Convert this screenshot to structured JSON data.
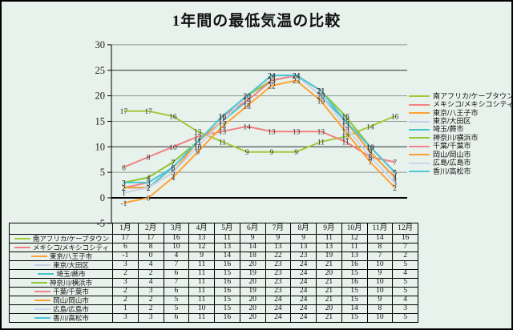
{
  "page": {
    "background": "#E7F2EC"
  },
  "chart_data": {
    "type": "line",
    "title": "1年間の最低気温の比較",
    "categories": [
      "1月",
      "2月",
      "3月",
      "4月",
      "5月",
      "6月",
      "7月",
      "8月",
      "9月",
      "10月",
      "11月",
      "12月"
    ],
    "series": [
      {
        "name": "南アフリカ/ケープタウン",
        "color": "#A3C93C",
        "values": [
          17,
          17,
          16,
          13,
          11,
          9,
          9,
          9,
          11,
          12,
          14,
          16
        ]
      },
      {
        "name": "メキシコ/メキシコシティ",
        "color": "#F28080",
        "values": [
          6,
          8,
          10,
          12,
          13,
          14,
          13,
          13,
          13,
          11,
          8,
          7
        ]
      },
      {
        "name": "東京/八王子市",
        "color": "#FFA233",
        "values": [
          -1,
          0,
          4,
          9,
          14,
          18,
          22,
          23,
          19,
          13,
          7,
          2
        ]
      },
      {
        "name": "東京/大田区",
        "color": "#C6CDE6",
        "values": [
          3,
          4,
          7,
          11,
          16,
          20,
          23,
          24,
          21,
          16,
          10,
          5
        ]
      },
      {
        "name": "埼玉/蕨市",
        "color": "#45C4CC",
        "values": [
          2,
          2,
          6,
          11,
          15,
          19,
          23,
          24,
          20,
          15,
          9,
          4
        ]
      },
      {
        "name": "神奈川/横浜市",
        "color": "#8FC832",
        "values": [
          3,
          4,
          7,
          11,
          16,
          20,
          23,
          24,
          21,
          16,
          10,
          5
        ]
      },
      {
        "name": "千葉/千葉市",
        "color": "#F2838E",
        "values": [
          2,
          3,
          6,
          11,
          16,
          19,
          23,
          24,
          21,
          15,
          10,
          5
        ]
      },
      {
        "name": "岡山/岡山市",
        "color": "#F9A037",
        "values": [
          2,
          2,
          5,
          11,
          15,
          20,
          24,
          24,
          21,
          15,
          9,
          4
        ]
      },
      {
        "name": "広島/広島市",
        "color": "#CFD3EC",
        "values": [
          1,
          2,
          5,
          10,
          15,
          20,
          24,
          24,
          20,
          14,
          8,
          3
        ]
      },
      {
        "name": "香川/高松市",
        "color": "#4BC8DA",
        "values": [
          3,
          3,
          6,
          11,
          16,
          20,
          24,
          24,
          21,
          15,
          10,
          5
        ]
      }
    ],
    "ylim": [
      -5,
      30
    ],
    "yticks": [
      30,
      25,
      20,
      15,
      10,
      5,
      0,
      -5
    ],
    "dark_gridlines": [
      25,
      10
    ],
    "grid": "horizontal",
    "legend_position": "right",
    "data_labels": "center",
    "data_table_shown": true,
    "colors": {
      "axis": "#000000",
      "grid": "#8F9693",
      "grid_dark": "#2B2B2B",
      "label": "#333333"
    }
  }
}
